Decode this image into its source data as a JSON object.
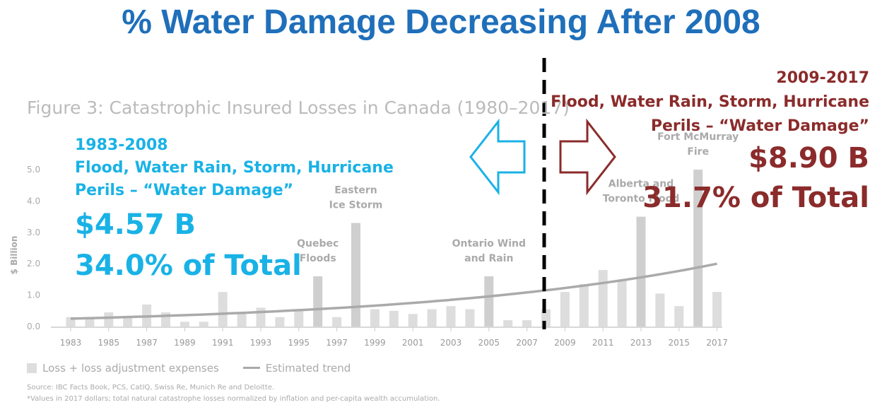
{
  "title": "% Water Damage Decreasing After 2008",
  "figure_title": "Figure 3: Catastrophic Insured Losses in Canada (1980–2017)",
  "left_panel": {
    "period": "1983-2008",
    "perils_line1": "Flood, Water Rain, Storm, Hurricane",
    "perils_line2": "Perils – “Water Damage”",
    "amount": "$4.57 B",
    "share": "34.0% of Total"
  },
  "right_panel": {
    "period": "2009-2017",
    "perils_line1": "Flood, Water Rain, Storm, Hurricane",
    "perils_line2": "Perils – “Water Damage”",
    "amount": "$8.90 B",
    "share": "31.7% of Total"
  },
  "legend": {
    "bars": "Loss + loss adjustment expenses",
    "trend": "Estimated trend"
  },
  "source": "Source: IBC Facts Book, PCS, CatIQ, Swiss Re, Munich Re and Deloitte.",
  "footnote": "*Values in 2017 dollars; total natural catastrophe losses normalized by inflation and per-capita wealth accumulation.",
  "colors": {
    "title": "#1f6fba",
    "left_accent": "#19b2e6",
    "right_accent": "#8b2b2b",
    "bar": "#dddddd",
    "bar_highlight": "#cfcfcf",
    "trend": "#aaaaaa",
    "divider": "#000000"
  },
  "chart_data": {
    "type": "bar",
    "ylabel": "$ Billion",
    "ylim": [
      0,
      5.0
    ],
    "yticks": [
      "0.0",
      "1.0",
      "2.0",
      "3.0",
      "4.0",
      "5.0"
    ],
    "categories": [
      1983,
      1984,
      1985,
      1986,
      1987,
      1988,
      1989,
      1990,
      1991,
      1992,
      1993,
      1994,
      1995,
      1996,
      1997,
      1998,
      1999,
      2000,
      2001,
      2002,
      2003,
      2004,
      2005,
      2006,
      2007,
      2008,
      2009,
      2010,
      2011,
      2012,
      2013,
      2014,
      2015,
      2016,
      2017
    ],
    "xtick_labels": [
      "1983",
      "1985",
      "1987",
      "1989",
      "1991",
      "1993",
      "1995",
      "1997",
      "1999",
      "2001",
      "2003",
      "2005",
      "2007",
      "2009",
      "2011",
      "2013",
      "2015",
      "2017"
    ],
    "values": [
      0.3,
      0.3,
      0.45,
      0.3,
      0.7,
      0.45,
      0.15,
      0.15,
      1.1,
      0.42,
      0.6,
      0.3,
      0.55,
      1.6,
      0.3,
      3.3,
      0.55,
      0.5,
      0.4,
      0.55,
      0.65,
      0.55,
      1.6,
      0.2,
      0.2,
      0.55,
      1.1,
      1.35,
      1.8,
      1.5,
      3.5,
      1.05,
      0.65,
      5.0,
      1.1
    ],
    "highlighted_years": [
      1996,
      1998,
      2005,
      2013,
      2016
    ],
    "trend": {
      "name": "Estimated trend",
      "start": 0.25,
      "end": 2.0
    },
    "annotations": [
      {
        "year": 1996,
        "line1": "Quebec",
        "line2": "Floods"
      },
      {
        "year": 1998,
        "line1": "Eastern",
        "line2": "Ice Storm"
      },
      {
        "year": 2005,
        "line1": "Ontario Wind",
        "line2": "and Rain"
      },
      {
        "year": 2013,
        "line1": "Alberta and",
        "line2": "Toronto Flood"
      },
      {
        "year": 2016,
        "line1": "Fort McMurray",
        "line2": "Fire"
      }
    ],
    "divider_after_year": 2008
  }
}
